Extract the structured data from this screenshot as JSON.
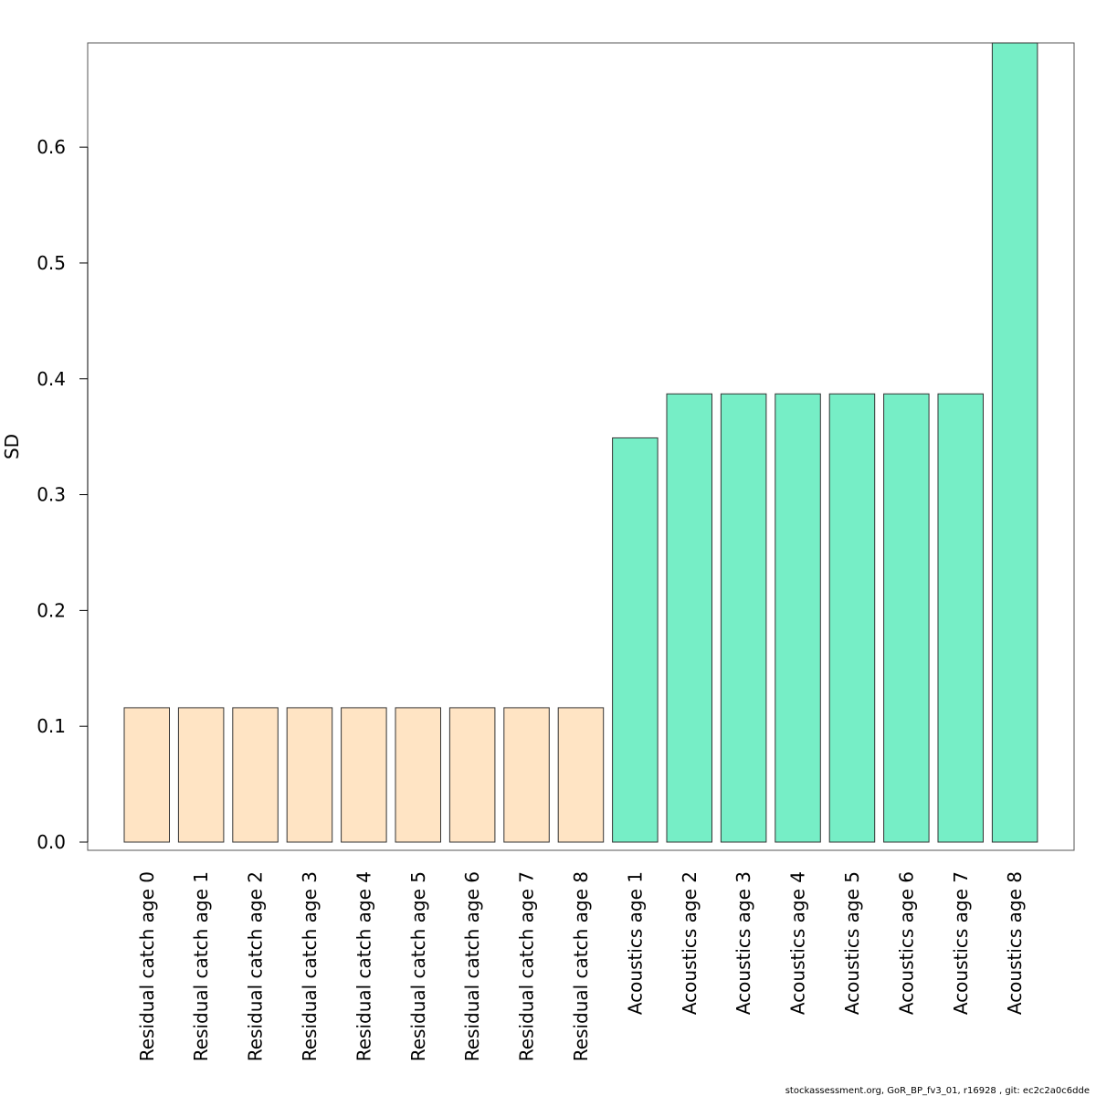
{
  "chart_data": {
    "type": "bar",
    "title": "",
    "xlabel": "",
    "ylabel": "SD",
    "ylim": [
      0,
      0.69
    ],
    "yticks": [
      0.0,
      0.1,
      0.2,
      0.3,
      0.4,
      0.5,
      0.6
    ],
    "ytick_labels": [
      "0.0",
      "0.1",
      "0.2",
      "0.3",
      "0.4",
      "0.5",
      "0.6"
    ],
    "grid": false,
    "categories": [
      "Residual catch age 0",
      "Residual catch age 1",
      "Residual catch age 2",
      "Residual catch age 3",
      "Residual catch age 4",
      "Residual catch age 5",
      "Residual catch age 6",
      "Residual catch age 7",
      "Residual catch age 8",
      "Acoustics age 1",
      "Acoustics age 2",
      "Acoustics age 3",
      "Acoustics age 4",
      "Acoustics age 5",
      "Acoustics age 6",
      "Acoustics age 7",
      "Acoustics age 8"
    ],
    "values": [
      0.116,
      0.116,
      0.116,
      0.116,
      0.116,
      0.116,
      0.116,
      0.116,
      0.116,
      0.349,
      0.387,
      0.387,
      0.387,
      0.387,
      0.387,
      0.387,
      0.69
    ],
    "bar_colors": [
      "#FFE4C4",
      "#FFE4C4",
      "#FFE4C4",
      "#FFE4C4",
      "#FFE4C4",
      "#FFE4C4",
      "#FFE4C4",
      "#FFE4C4",
      "#FFE4C4",
      "#76EEC6",
      "#76EEC6",
      "#76EEC6",
      "#76EEC6",
      "#76EEC6",
      "#76EEC6",
      "#76EEC6",
      "#76EEC6"
    ],
    "bar_edge_color": "#333333"
  },
  "footer": {
    "text": "stockassessment.org, GoR_BP_fv3_01, r16928 , git: ec2c2a0c6dde"
  }
}
